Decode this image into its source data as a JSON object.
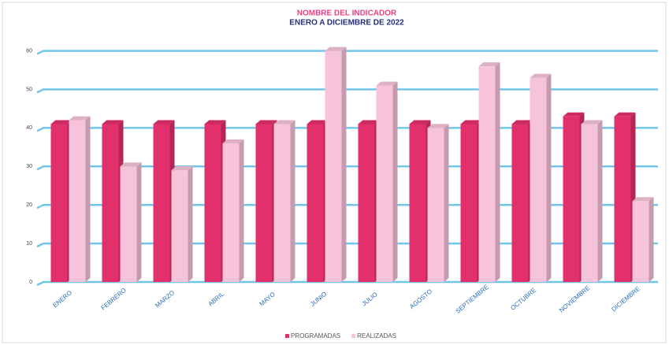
{
  "chart_data": {
    "type": "bar3d",
    "title": "NOMBRE DEL INDICADOR",
    "subtitle": "ENERO A DICIEMBRE DE 2022",
    "categories": [
      "ENERO",
      "FEBRERO",
      "MARZO",
      "ABRIL",
      "MAYO",
      "JUNIO",
      "JULIO",
      "AGOSTO",
      "SEPTIEMBRE",
      "OCTUBRE",
      "NOVIEMBRE",
      "DICIEMBRE"
    ],
    "series": [
      {
        "name": "PROGRAMADAS",
        "color": "#e2306c",
        "values": [
          41,
          41,
          41,
          41,
          41,
          41,
          41,
          41,
          41,
          41,
          43,
          43
        ]
      },
      {
        "name": "REALIZADAS",
        "color": "#f6c3da",
        "values": [
          42,
          30,
          29,
          36,
          41,
          60,
          51,
          40,
          56,
          53,
          41,
          21
        ]
      }
    ],
    "ylim": [
      0,
      64
    ],
    "yticks": [
      0,
      10,
      20,
      30,
      40,
      50,
      60
    ],
    "grid": true,
    "legend": "bottom"
  }
}
